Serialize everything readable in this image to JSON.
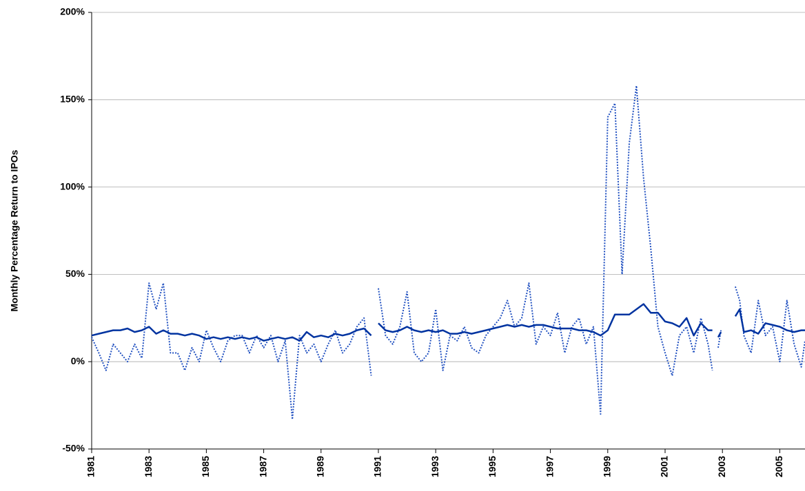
{
  "chart_data": {
    "type": "line",
    "y_label": "Monthly Percentage Return to IPOs",
    "x": [
      1981,
      1981.25,
      1981.5,
      1981.75,
      1982,
      1982.25,
      1982.5,
      1982.75,
      1983,
      1983.25,
      1983.5,
      1983.75,
      1984,
      1984.25,
      1984.5,
      1984.75,
      1985,
      1985.25,
      1985.5,
      1985.75,
      1986,
      1986.25,
      1986.5,
      1986.75,
      1987,
      1987.25,
      1987.5,
      1987.75,
      1988,
      1988.25,
      1988.5,
      1988.75,
      1989,
      1989.25,
      1989.5,
      1989.75,
      1990,
      1990.25,
      1990.5,
      1990.75,
      1990.9,
      1991,
      1991.25,
      1991.5,
      1991.75,
      1992,
      1992.25,
      1992.5,
      1992.75,
      1993,
      1993.25,
      1993.5,
      1993.75,
      1994,
      1994.25,
      1994.5,
      1994.75,
      1995,
      1995.25,
      1995.5,
      1995.75,
      1996,
      1996.25,
      1996.5,
      1996.75,
      1997,
      1997.25,
      1997.5,
      1997.75,
      1998,
      1998.25,
      1998.5,
      1998.75,
      1999,
      1999.25,
      1999.5,
      1999.75,
      2000,
      2000.25,
      2000.5,
      2000.75,
      2001,
      2001.25,
      2001.5,
      2001.75,
      2002,
      2002.25,
      2002.5,
      2002.65,
      2002.72,
      2002.85,
      2002.95,
      2003,
      2003.45,
      2003.6,
      2003.75,
      2004,
      2004.25,
      2004.5,
      2004.75,
      2005,
      2005.25,
      2005.5,
      2005.75,
      2005.88
    ],
    "series": [
      {
        "color": "#0033a0",
        "style": "solid",
        "values": [
          15,
          16,
          17,
          18,
          18,
          19,
          17,
          18,
          20,
          16,
          18,
          16,
          16,
          15,
          16,
          15,
          13,
          14,
          13,
          14,
          13,
          14,
          13,
          14,
          12,
          13,
          14,
          13,
          14,
          12,
          17,
          14,
          15,
          14,
          16,
          15,
          16,
          18,
          19,
          15,
          null,
          22,
          18,
          17,
          18,
          20,
          18,
          17,
          18,
          17,
          18,
          16,
          16,
          17,
          16,
          17,
          18,
          19,
          20,
          21,
          20,
          21,
          20,
          21,
          21,
          20,
          19,
          19,
          19,
          18,
          18,
          17,
          15,
          18,
          27,
          27,
          27,
          30,
          33,
          28,
          28,
          23,
          22,
          20,
          25,
          15,
          22,
          18,
          18,
          null,
          14,
          17,
          null,
          26,
          30,
          17,
          18,
          16,
          22,
          21,
          20,
          18,
          17,
          18,
          18
        ]
      },
      {
        "color": "#1f4fc0",
        "style": "dotted",
        "values": [
          14,
          5,
          -5,
          10,
          5,
          0,
          10,
          2,
          45,
          30,
          45,
          5,
          5,
          -5,
          8,
          0,
          18,
          8,
          0,
          12,
          15,
          15,
          5,
          15,
          8,
          15,
          0,
          12,
          -33,
          15,
          5,
          10,
          0,
          10,
          18,
          5,
          10,
          20,
          25,
          -8,
          null,
          42,
          15,
          10,
          20,
          40,
          5,
          0,
          5,
          30,
          -5,
          15,
          12,
          20,
          8,
          5,
          15,
          20,
          25,
          35,
          20,
          25,
          45,
          10,
          20,
          15,
          28,
          5,
          20,
          25,
          10,
          20,
          -30,
          140,
          148,
          50,
          125,
          158,
          105,
          65,
          20,
          5,
          -8,
          15,
          20,
          5,
          25,
          10,
          -5,
          null,
          8,
          18,
          null,
          43,
          35,
          15,
          5,
          35,
          15,
          20,
          0,
          35,
          10,
          -3,
          12
        ]
      }
    ],
    "xlim": [
      1981,
      2005.88
    ],
    "xticks": [
      1981,
      1983,
      1985,
      1987,
      1989,
      1991,
      1993,
      1995,
      1997,
      1999,
      2001,
      2003,
      2005
    ],
    "ylim": [
      -50,
      200
    ],
    "yticks": [
      {
        "value": -50,
        "label": "-50%"
      },
      {
        "value": 0,
        "label": "0%"
      },
      {
        "value": 50,
        "label": "50%"
      },
      {
        "value": 100,
        "label": "100%"
      },
      {
        "value": 150,
        "label": "150%"
      },
      {
        "value": 200,
        "label": "200%"
      }
    ],
    "grid": true
  }
}
